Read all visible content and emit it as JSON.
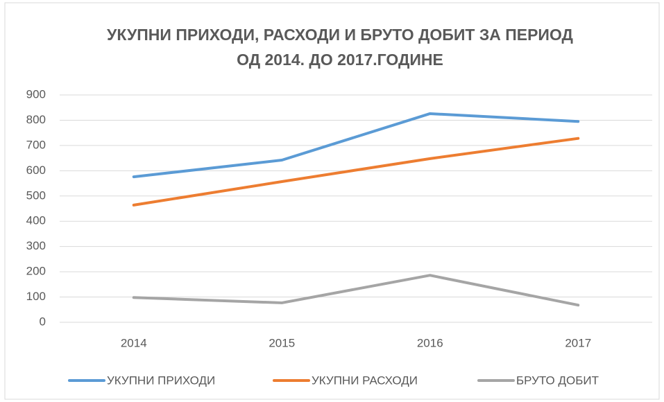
{
  "chart_data": {
    "type": "line",
    "title": [
      "УКУПНИ ПРИХОДИ, РАСХОДИ И БРУТО ДОБИТ ЗА ПЕРИОД",
      "ОД 2014. ДО 2017.ГОДИНЕ"
    ],
    "categories": [
      "2014",
      "2015",
      "2016",
      "2017"
    ],
    "series": [
      {
        "name": "УКУПНИ ПРИХОДИ",
        "color": "#5b9bd5",
        "values": [
          576,
          642,
          826,
          795
        ]
      },
      {
        "name": "УКУПНИ РАСХОДИ",
        "color": "#ed7d31",
        "values": [
          464,
          557,
          648,
          728
        ]
      },
      {
        "name": "БРУТО ДОБИТ",
        "color": "#a5a5a5",
        "values": [
          98,
          77,
          186,
          68
        ]
      }
    ],
    "ylim": [
      0,
      900
    ],
    "yticks": [
      0,
      100,
      200,
      300,
      400,
      500,
      600,
      700,
      800,
      900
    ],
    "grid": true,
    "legend": "bottom"
  }
}
